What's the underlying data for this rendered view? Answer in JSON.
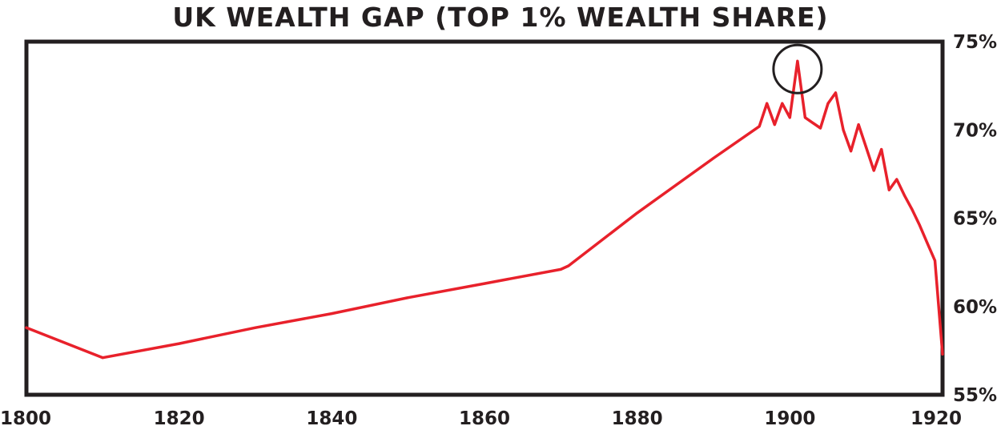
{
  "chart_data": {
    "type": "line",
    "title": "UK WEALTH GAP (TOP 1% WEALTH SHARE)",
    "xlabel": "",
    "ylabel": "",
    "xlim": [
      1800,
      1920
    ],
    "ylim": [
      55,
      75
    ],
    "x_ticks": [
      "1800",
      "1820",
      "1840",
      "1860",
      "1880",
      "1900",
      "1920"
    ],
    "y_ticks": [
      "75%",
      "70%",
      "65%",
      "60%",
      "55%"
    ],
    "grid": false,
    "legend": "none",
    "colors": {
      "line": "#e8212b",
      "frame": "#231f20",
      "text": "#231f20"
    },
    "series": [
      {
        "x": [
          1800,
          1810,
          1820,
          1830,
          1840,
          1850,
          1860,
          1870,
          1871,
          1880,
          1890,
          1896,
          1897,
          1898,
          1899,
          1900,
          1901,
          1902,
          1903,
          1904,
          1905,
          1906,
          1907,
          1908,
          1909,
          1910,
          1911,
          1912,
          1913,
          1914,
          1915,
          1916,
          1917,
          1918,
          1919,
          1920
        ],
        "y": [
          58.8,
          57.1,
          57.9,
          58.8,
          59.6,
          60.5,
          61.3,
          62.1,
          62.3,
          65.3,
          68.4,
          70.2,
          71.5,
          70.3,
          71.5,
          70.7,
          73.9,
          70.7,
          70.4,
          70.1,
          71.5,
          72.1,
          70.0,
          68.8,
          70.3,
          69.0,
          67.7,
          68.9,
          66.6,
          67.2,
          66.3,
          65.5,
          64.6,
          63.6,
          62.6,
          57.3
        ]
      }
    ],
    "annotations": [
      {
        "type": "circle",
        "x": 1901,
        "y": 73.9
      }
    ]
  }
}
